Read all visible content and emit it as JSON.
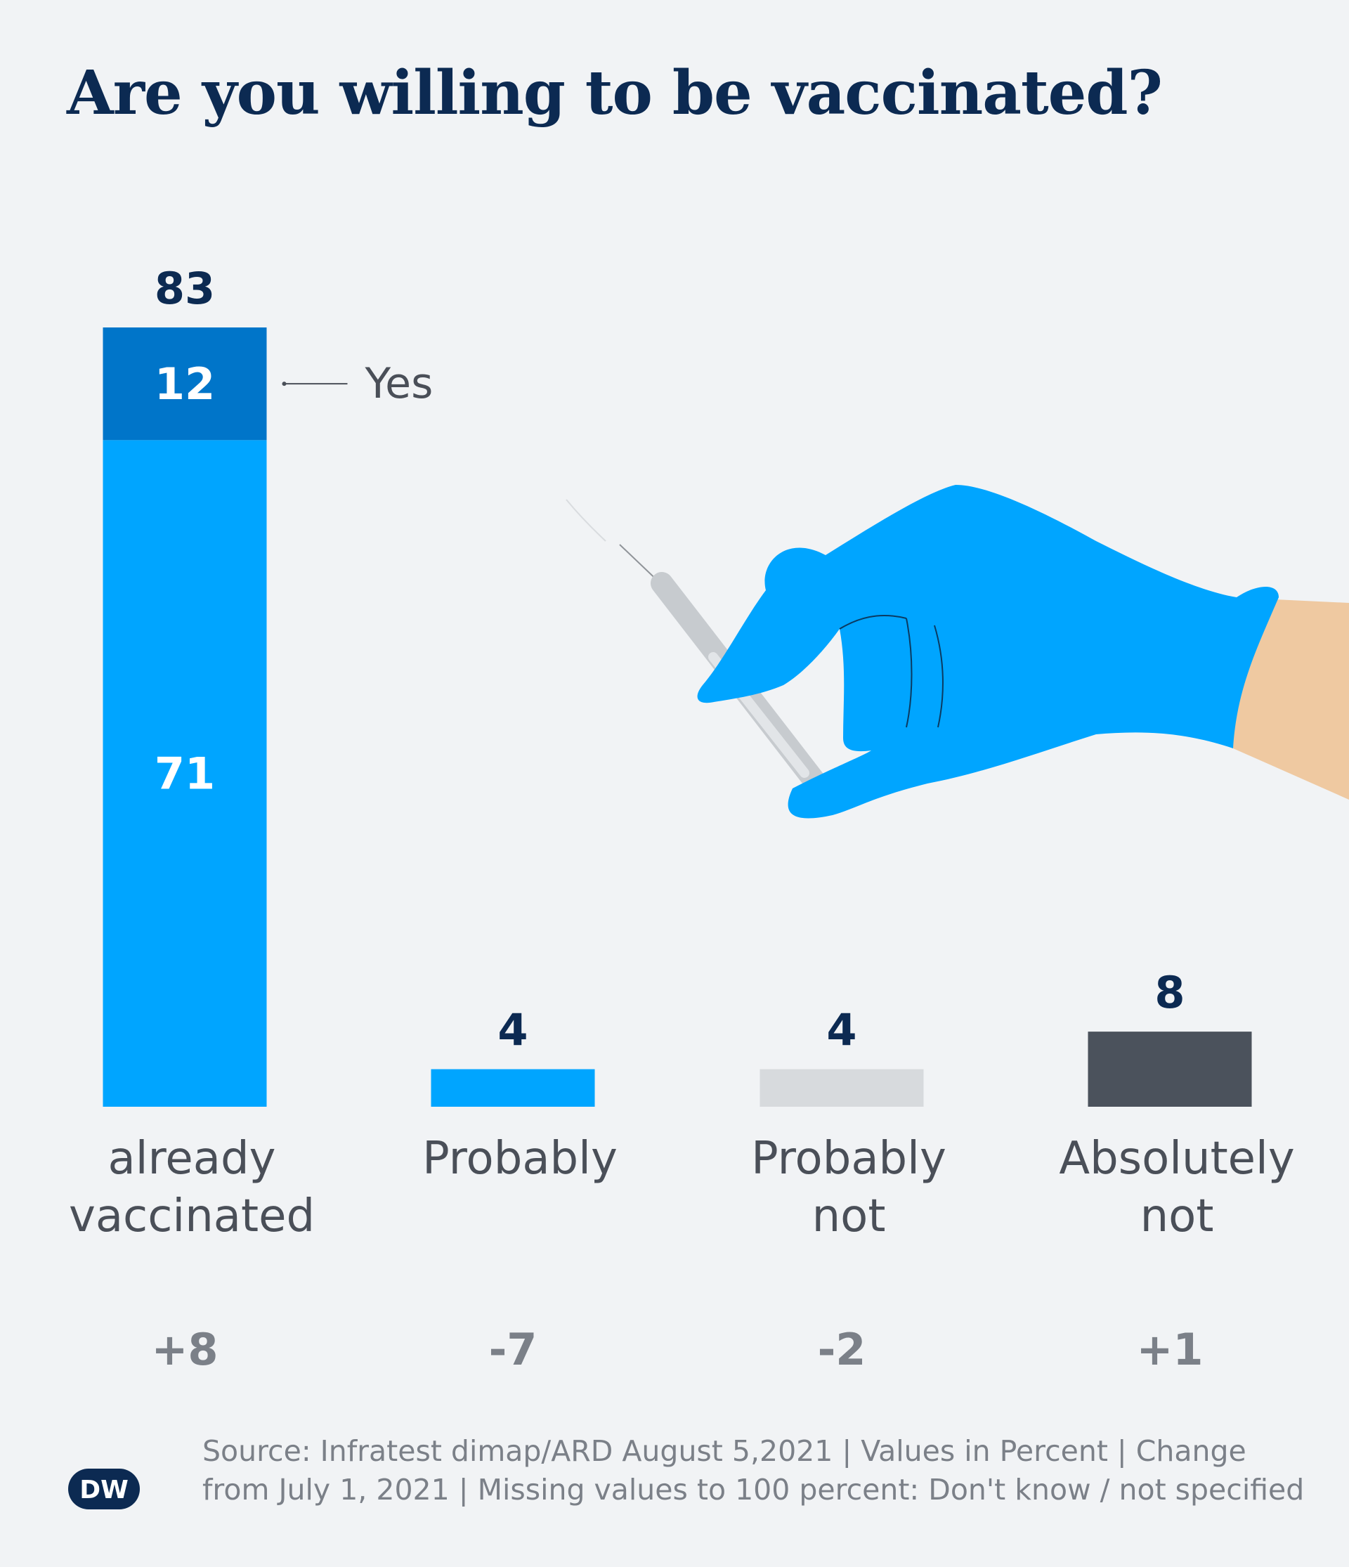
{
  "title": "Are you willing to be vaccinated?",
  "chart_data": {
    "type": "bar",
    "categories": [
      [
        "already",
        "vaccinated"
      ],
      [
        "Probably"
      ],
      [
        "Probably",
        "not"
      ],
      [
        "Absolutely",
        "not"
      ]
    ],
    "totals": [
      83,
      4,
      4,
      8
    ],
    "segments": [
      [
        {
          "value": 71,
          "label": "71",
          "color": "#00a5ff"
        },
        {
          "value": 12,
          "label": "12",
          "color": "#0075c9"
        }
      ],
      [
        {
          "value": 4,
          "color": "#00a5ff"
        }
      ],
      [
        {
          "value": 4,
          "color": "#d7dadd"
        }
      ],
      [
        {
          "value": 8,
          "color": "#4b525c"
        }
      ]
    ],
    "changes": [
      "+8",
      "-7",
      "-2",
      "+1"
    ],
    "annotation": "Yes",
    "ylim": [
      0,
      83
    ],
    "grid": false
  },
  "source": {
    "line1": "Source: Infratest dimap/ARD August 5,2021 | Values in Percent | Change",
    "line2": "from July 1, 2021 | Missing values to 100 percent: Don't know / not specified"
  },
  "logo": {
    "text": "DW",
    "icon": "dw-logo-icon"
  },
  "illustration": {
    "icon": "gloved-hand-syringe-icon"
  },
  "colors": {
    "title": "#0c2a52",
    "primary_blue": "#00a5ff",
    "dark_blue": "#0075c9",
    "light_gray": "#d7dadd",
    "dark_gray": "#4b525c",
    "background": "#f1f3f5",
    "skin": "#efc9a1"
  }
}
